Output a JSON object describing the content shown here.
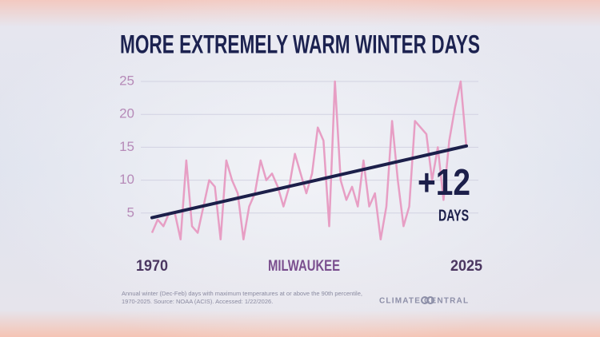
{
  "chart_data": {
    "type": "line",
    "title": "MORE EXTREMELY WARM WINTER DAYS",
    "x": [
      1970,
      1971,
      1972,
      1973,
      1974,
      1975,
      1976,
      1977,
      1978,
      1979,
      1980,
      1981,
      1982,
      1983,
      1984,
      1985,
      1986,
      1987,
      1988,
      1989,
      1990,
      1991,
      1992,
      1993,
      1994,
      1995,
      1996,
      1997,
      1998,
      1999,
      2000,
      2001,
      2002,
      2003,
      2004,
      2005,
      2006,
      2007,
      2008,
      2009,
      2010,
      2011,
      2012,
      2013,
      2014,
      2015,
      2016,
      2017,
      2018,
      2019,
      2020,
      2021,
      2022,
      2023,
      2024,
      2025
    ],
    "values": [
      2,
      4,
      3,
      5,
      5,
      1,
      13,
      3,
      2,
      6,
      10,
      9,
      1,
      13,
      10,
      8,
      1,
      6,
      8,
      13,
      10,
      11,
      9,
      6,
      9,
      14,
      11,
      8,
      11,
      18,
      16,
      3,
      25,
      10,
      7,
      9,
      6,
      13,
      6,
      8,
      1,
      6,
      19,
      10,
      3,
      6,
      19,
      18,
      17,
      10,
      15,
      7,
      16,
      21,
      25,
      15
    ],
    "color": "#e79ec4",
    "trend": {
      "x": [
        1970,
        2025
      ],
      "values": [
        4.3,
        15.2
      ],
      "color": "#1c1f4a"
    },
    "xlim": [
      1970,
      2025
    ],
    "xticks": [
      1970,
      2025
    ],
    "ylim": [
      0,
      25
    ],
    "yticks": [
      5,
      10,
      15,
      20,
      25
    ],
    "grid": true,
    "location": "MILWAUKEE",
    "annotation": "+12",
    "annotation_unit": "DAYS",
    "note": [
      "Annual winter (Dec-Feb) days with maximum temperatures at or above the 90th percentile,",
      "1970-2025. Source: NOAA (ACIS). Accessed: 1/22/2026."
    ],
    "brand": "CLIMATE CENTRAL"
  }
}
